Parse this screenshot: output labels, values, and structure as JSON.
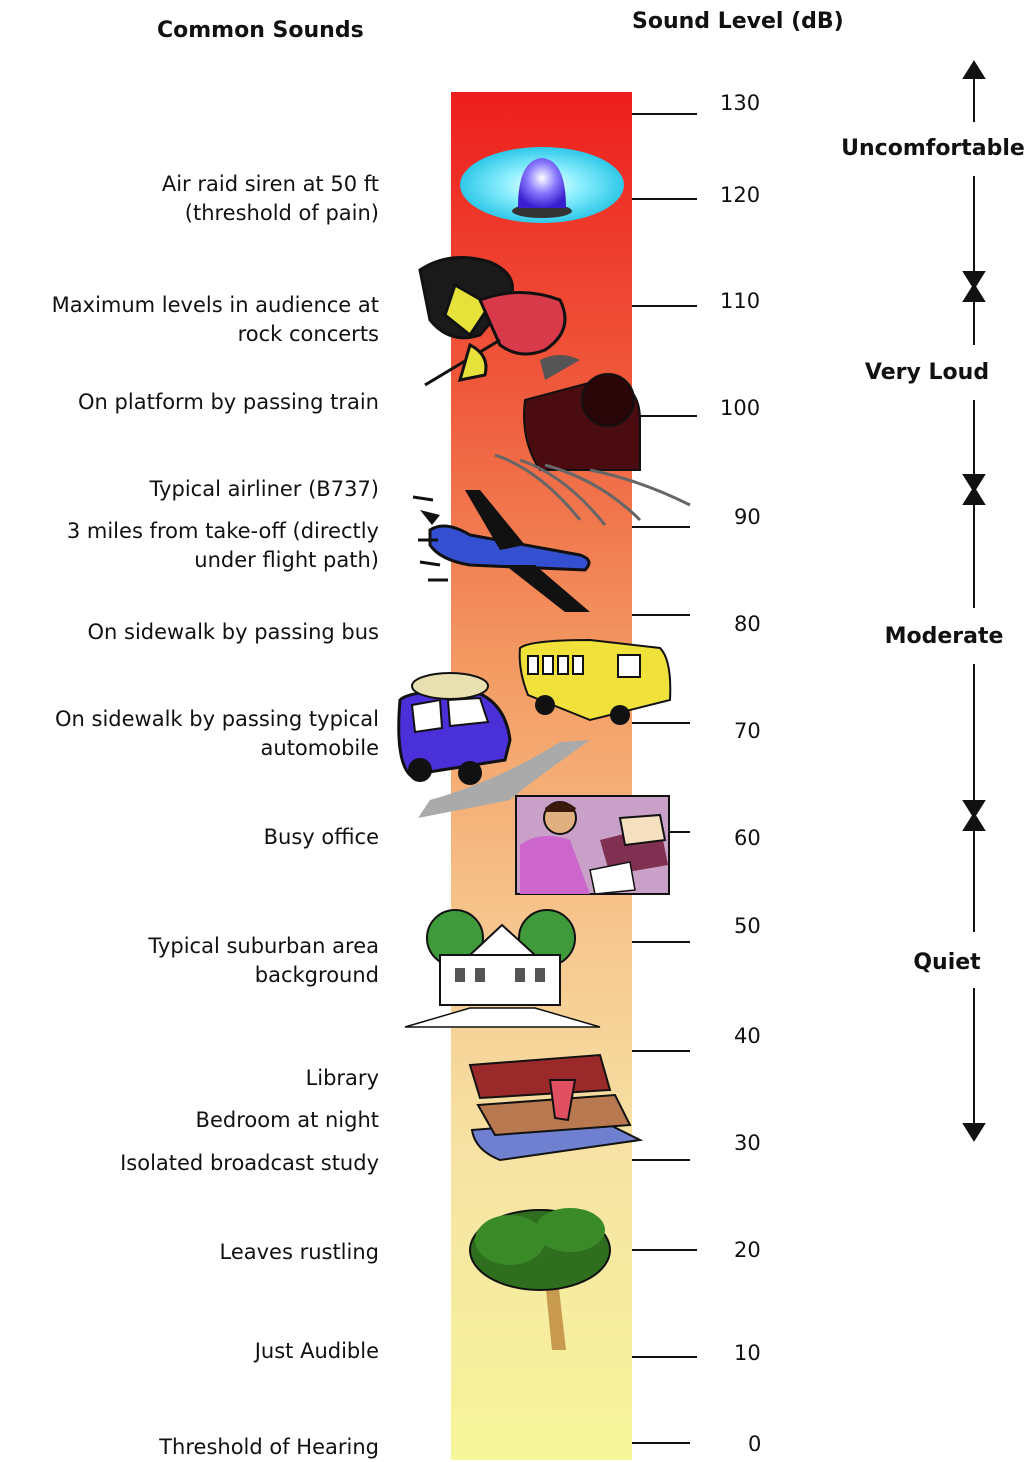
{
  "headers": {
    "left": "Common Sounds",
    "right": "Sound Level (dB)"
  },
  "ticks": [
    "130",
    "120",
    "110",
    "100",
    "90",
    "80",
    "70",
    "60",
    "50",
    "40",
    "30",
    "20",
    "10",
    "0"
  ],
  "sounds": [
    {
      "line1": "Air raid siren at 50 ft",
      "line2": "(threshold of pain)"
    },
    {
      "line1": "Maximum levels in audience at",
      "line2": "rock concerts"
    },
    {
      "line1": "On platform by passing train",
      "line2": ""
    },
    {
      "line1": "Typical airliner (B737)",
      "line2": ""
    },
    {
      "line1": "3 miles from take-off (directly",
      "line2": "under flight path)"
    },
    {
      "line1": "On sidewalk by passing bus",
      "line2": ""
    },
    {
      "line1": "On sidewalk by passing typical",
      "line2": "automobile"
    },
    {
      "line1": "Busy office",
      "line2": ""
    },
    {
      "line1": "Typical suburban area",
      "line2": "background"
    },
    {
      "line1": "Library",
      "line2": ""
    },
    {
      "line1": "Bedroom at night",
      "line2": ""
    },
    {
      "line1": "Isolated broadcast study",
      "line2": ""
    },
    {
      "line1": "Leaves rustling",
      "line2": ""
    },
    {
      "line1": "Just Audible",
      "line2": ""
    },
    {
      "line1": "Threshold of Hearing",
      "line2": ""
    }
  ],
  "categories": [
    "Uncomfortable",
    "Very Loud",
    "Moderate",
    "Quiet"
  ],
  "colors": {
    "bar_top": "#ee1e1e",
    "bar_mid": "#f39a62",
    "bar_low": "#f6dfa0",
    "bar_bottom": "#f6f69a"
  },
  "icons": [
    "siren-icon",
    "guitarist-icon",
    "train-icon",
    "airplane-icon",
    "bus-icon",
    "car-icon",
    "office-worker-icon",
    "house-icon",
    "books-icon",
    "tree-icon"
  ]
}
